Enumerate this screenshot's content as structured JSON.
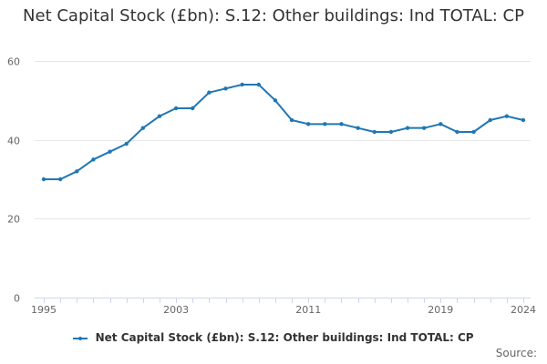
{
  "chart_data": {
    "type": "line",
    "title": "Net Capital Stock (£bn): S.12: Other buildings: Ind TOTAL: CP",
    "x": [
      1995,
      1996,
      1997,
      1998,
      1999,
      2000,
      2001,
      2002,
      2003,
      2004,
      2005,
      2006,
      2007,
      2008,
      2009,
      2010,
      2011,
      2012,
      2013,
      2014,
      2015,
      2016,
      2017,
      2018,
      2019,
      2020,
      2021,
      2022,
      2023,
      2024
    ],
    "series": [
      {
        "name": "Net Capital Stock (£bn): S.12: Other buildings: Ind TOTAL: CP",
        "values": [
          30,
          30,
          32,
          35,
          37,
          39,
          43,
          46,
          48,
          48,
          52,
          53,
          54,
          54,
          50,
          45,
          44,
          44,
          44,
          43,
          42,
          42,
          43,
          43,
          44,
          42,
          42,
          45,
          46,
          45
        ],
        "color": "#1f77b4"
      }
    ],
    "x_tick_labels": [
      "1995",
      "2003",
      "2011",
      "2019",
      "2024"
    ],
    "y_tick_labels": [
      "0",
      "20",
      "40",
      "60"
    ],
    "ylim": [
      0,
      60
    ],
    "xlim": [
      1995,
      2024
    ],
    "grid": true,
    "legend_position": "bottom"
  },
  "source_label": "Source:"
}
